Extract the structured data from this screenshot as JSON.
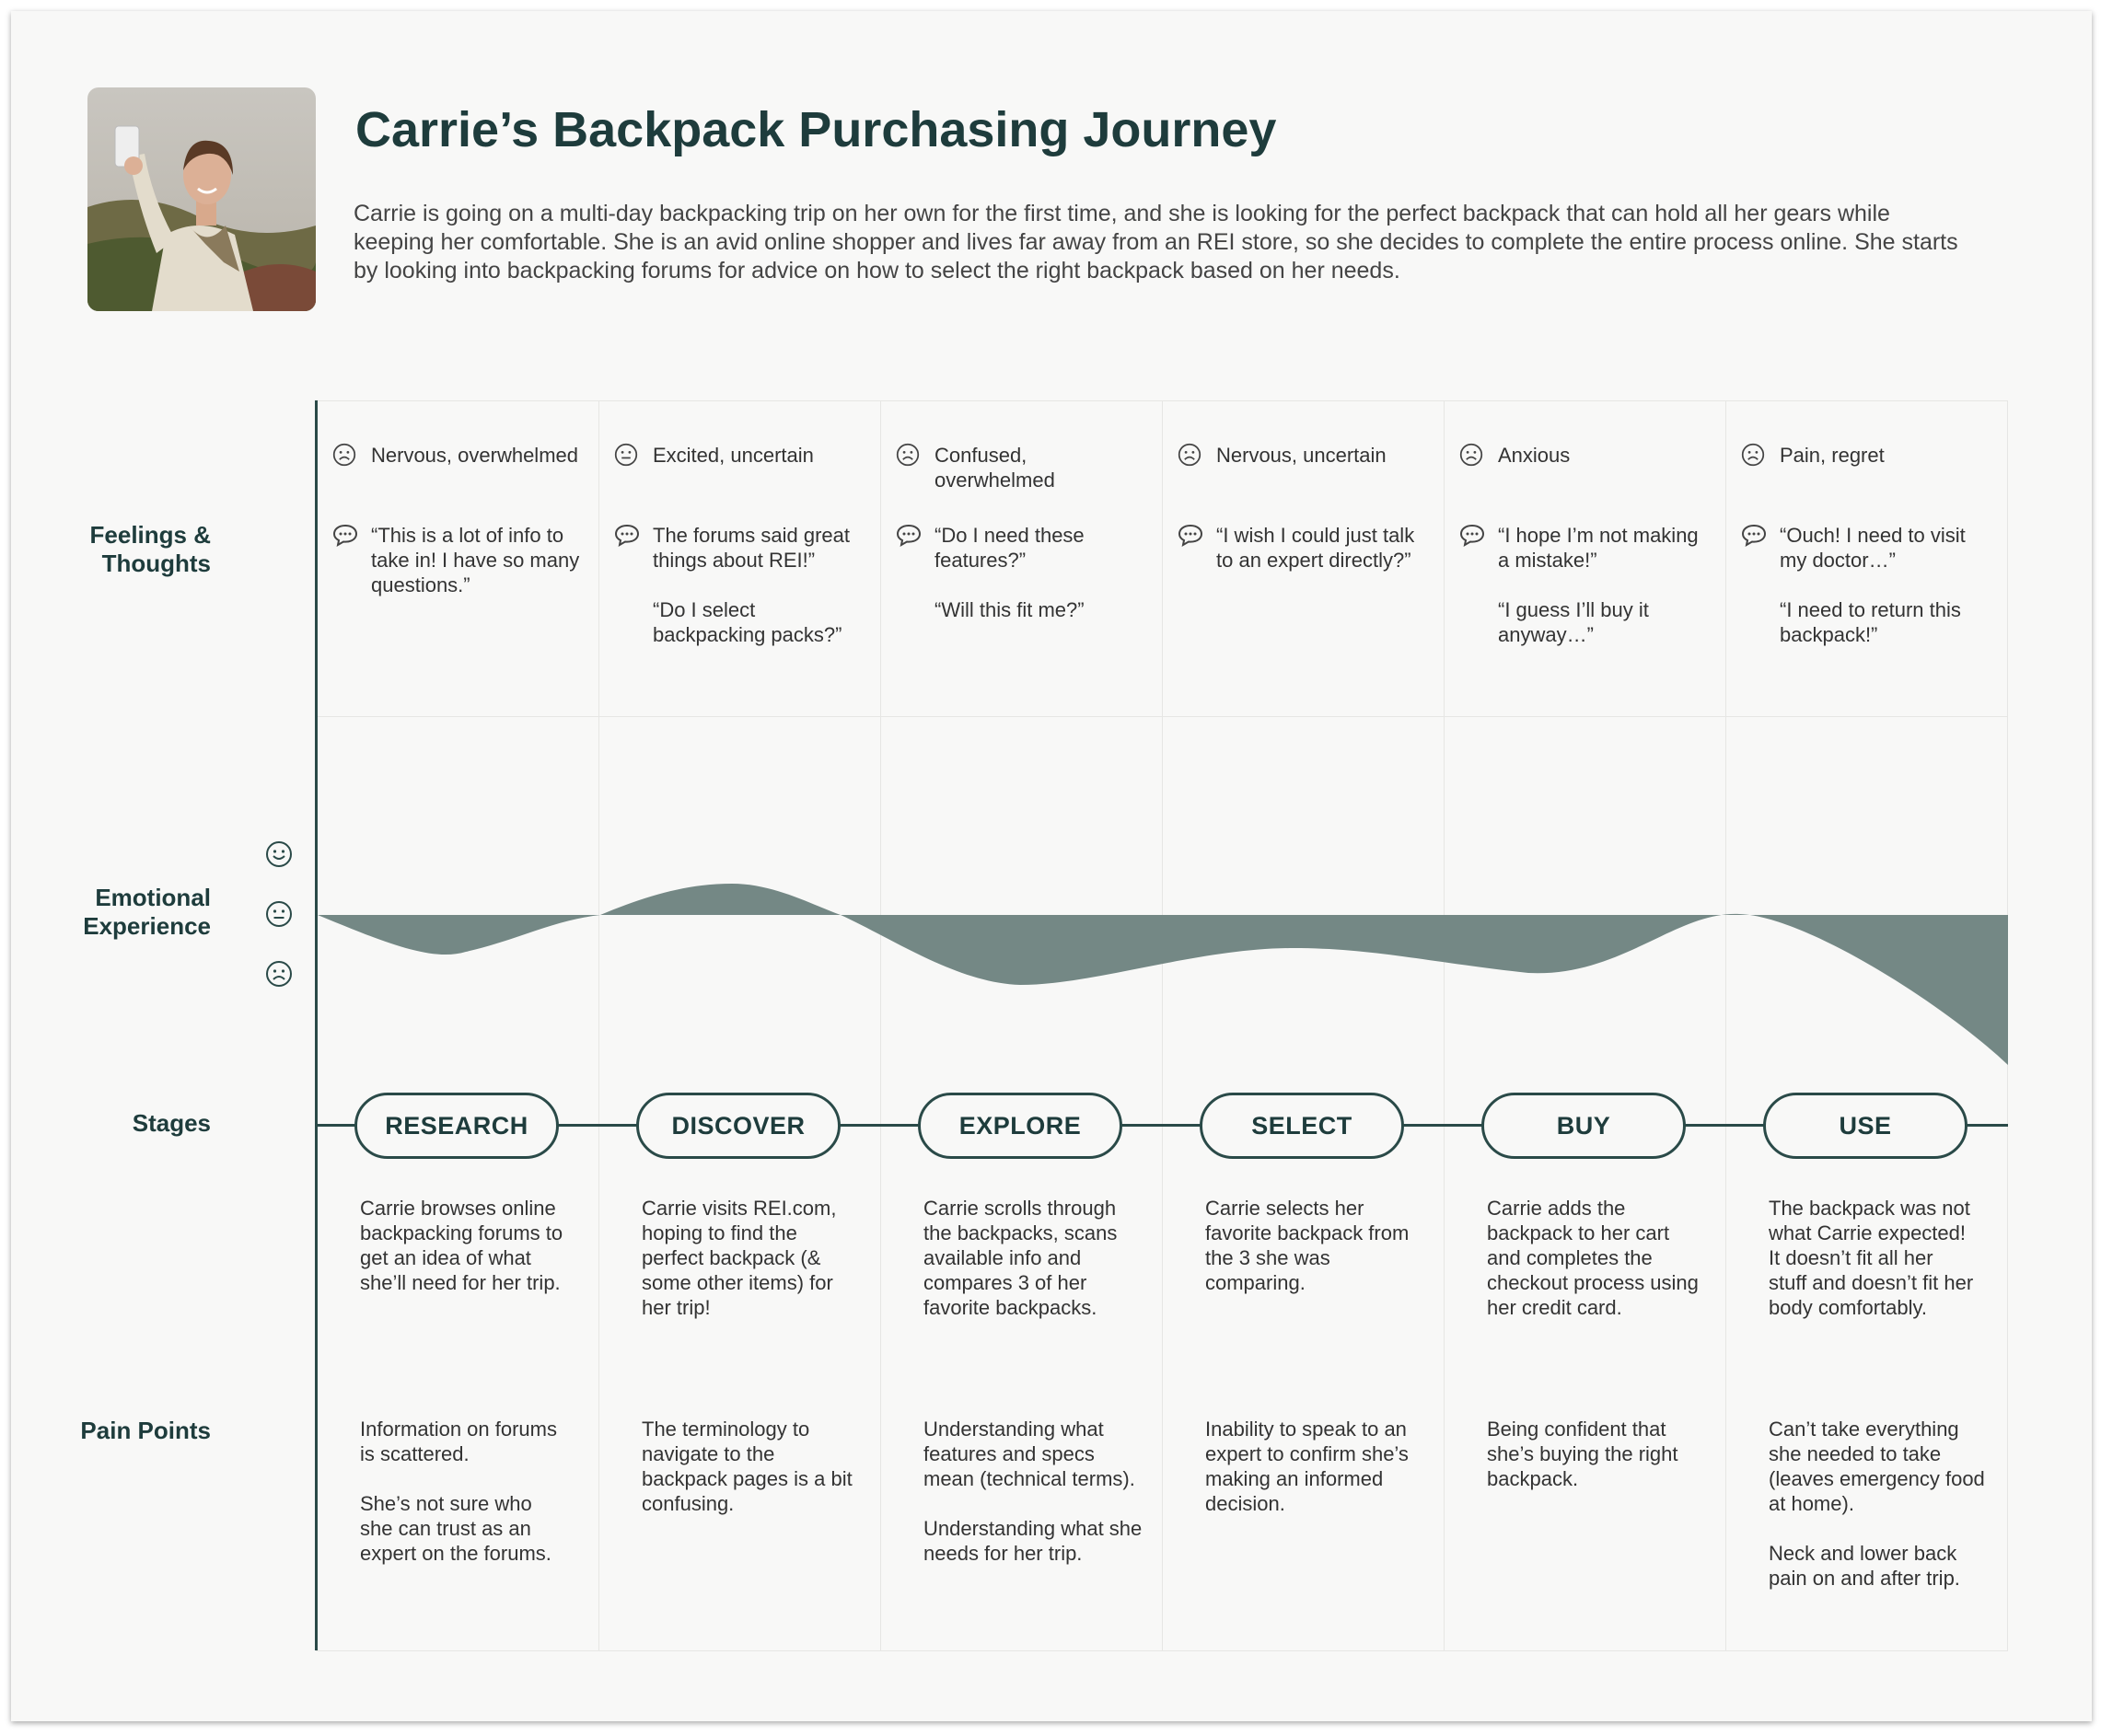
{
  "header": {
    "title": "Carrie’s Backpack Purchasing Journey",
    "intro": "Carrie is going on a multi-day backpacking trip on her own for the first time, and she is looking for the perfect backpack that can hold all her gears while keeping her comfortable. She is an avid online shopper and lives far away from an REI store, so she decides to complete the entire process online. She starts by looking into backpacking forums for advice on how to select the right backpack based on her needs."
  },
  "row_labels": {
    "feelings": "Feelings & Thoughts",
    "emotional": "Emotional Experience",
    "stages": "Stages",
    "pain_points": "Pain Points"
  },
  "emotion_scale": [
    "happy-icon",
    "neutral-icon",
    "sad-icon"
  ],
  "columns": [
    {
      "stage": "RESEARCH",
      "feeling": "Nervous, overwhelmed",
      "feeling_icon": "sad-icon",
      "thoughts": [
        "“This is a lot of info to take in!  I have so many questions.”"
      ],
      "description": "Carrie browses online backpacking forums to get an idea of what she’ll need for her trip.",
      "pain_points": [
        "Information on forums is scattered.",
        "She’s not sure who she can trust as an expert on the forums."
      ]
    },
    {
      "stage": "DISCOVER",
      "feeling": "Excited, uncertain",
      "feeling_icon": "neutral-icon",
      "thoughts": [
        "The forums said great things about REI!”",
        "“Do I select backpacking packs?”"
      ],
      "description": "Carrie visits REI.com, hoping to find the perfect backpack (& some other items) for her trip!",
      "pain_points": [
        "The terminology to navigate to the backpack pages is a bit confusing."
      ]
    },
    {
      "stage": "EXPLORE",
      "feeling": "Confused, overwhelmed",
      "feeling_icon": "sad-icon",
      "thoughts": [
        "“Do I need these features?”",
        "“Will this fit me?”"
      ],
      "description": "Carrie scrolls through the backpacks, scans available info and compares 3 of her favorite backpacks.",
      "pain_points": [
        "Understanding what features and specs mean (technical terms).",
        "Understanding what she needs for her trip."
      ]
    },
    {
      "stage": "SELECT",
      "feeling": "Nervous, uncertain",
      "feeling_icon": "sad-icon",
      "thoughts": [
        "“I wish I could just talk to an expert directly?”"
      ],
      "description": "Carrie selects her favorite backpack from the 3 she was comparing.",
      "pain_points": [
        "Inability to speak to an expert to confirm she’s making an informed decision."
      ]
    },
    {
      "stage": "BUY",
      "feeling": "Anxious",
      "feeling_icon": "sad-icon",
      "thoughts": [
        "“I hope I’m not making a mistake!”",
        "“I guess I’ll buy it anyway…”"
      ],
      "description": "Carrie adds the backpack to her cart and completes the checkout process using her credit card.",
      "pain_points": [
        "Being confident that she’s buying the right backpack."
      ]
    },
    {
      "stage": "USE",
      "feeling": "Pain, regret",
      "feeling_icon": "sad-icon",
      "thoughts": [
        "“Ouch!  I need to visit my doctor…”",
        "“I need to return this backpack!”"
      ],
      "description": "The backpack was not what Carrie expected! It doesn’t fit all her stuff and doesn’t fit her body comfortably.",
      "pain_points": [
        "Can’t take everything she needed to take (leaves emergency food at home).",
        "Neck and lower back pain on and after trip."
      ]
    }
  ],
  "colors": {
    "accent": "#2a4a48",
    "title": "#1e3c3c",
    "curve_fill": "#748885",
    "card_bg": "#f8f8f7"
  }
}
